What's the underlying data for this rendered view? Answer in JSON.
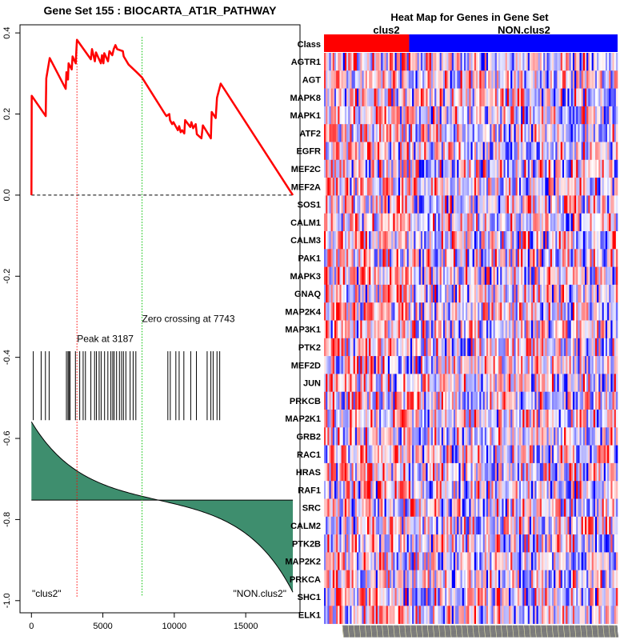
{
  "figure": {
    "left_title": "Gene Set  155 : BIOCARTA_AT1R_PATHWAY",
    "right_title": "Heat Map for Genes in Gene Set"
  },
  "chart_data": [
    {
      "type": "line",
      "name": "enrichment-score-plot",
      "title": "Gene Set  155 : BIOCARTA_AT1R_PATHWAY",
      "xlabel": "",
      "ylabel": "",
      "xlim": [
        -800,
        18800
      ],
      "ylim": [
        -1.03,
        0.42
      ],
      "x_ticks": [
        0,
        5000,
        10000,
        15000
      ],
      "x_tick_labels": [
        "0",
        "5000",
        "10000",
        "15000"
      ],
      "y_ticks": [
        0.4,
        0.2,
        0.0,
        -0.2,
        -0.4,
        -0.6,
        -0.8,
        -1.0
      ],
      "y_tick_labels": [
        "0.4",
        "0.2",
        "0.0",
        "-0.2",
        "-0.4",
        "-0.6",
        "-0.8",
        "-1.0"
      ],
      "colors": {
        "es_line": "#ff0000",
        "peak_line": "#ff0000",
        "zero_cross_line": "#00c000",
        "ranked_fill": "#3e8e6e",
        "hits": "#000000"
      },
      "es_curve": {
        "x": [
          0,
          20,
          1000,
          1040,
          1280,
          2400,
          2450,
          2560,
          2600,
          2820,
          2880,
          3100,
          3150,
          3187,
          4160,
          4240,
          4440,
          4520,
          4860,
          4940,
          5040,
          5100,
          5360,
          5460,
          5660,
          5760,
          5880,
          6000,
          6400,
          6460,
          6800,
          7400,
          7743,
          9350,
          9450,
          9650,
          9700,
          9850,
          9940,
          10250,
          10340,
          10450,
          10550,
          10700,
          10760,
          11120,
          11200,
          11320,
          11500,
          11580,
          11900,
          12000,
          12560,
          12620,
          12900,
          12990,
          13250,
          18300
        ],
        "y": [
          0.0,
          0.245,
          0.195,
          0.288,
          0.338,
          0.262,
          0.303,
          0.285,
          0.325,
          0.31,
          0.342,
          0.325,
          0.36,
          0.383,
          0.335,
          0.36,
          0.33,
          0.352,
          0.325,
          0.345,
          0.325,
          0.35,
          0.33,
          0.355,
          0.345,
          0.36,
          0.37,
          0.36,
          0.355,
          0.342,
          0.322,
          0.302,
          0.29,
          0.2,
          0.195,
          0.2,
          0.185,
          0.175,
          0.18,
          0.16,
          0.17,
          0.155,
          0.16,
          0.152,
          0.185,
          0.168,
          0.18,
          0.165,
          0.175,
          0.15,
          0.14,
          0.172,
          0.14,
          0.205,
          0.19,
          0.24,
          0.275,
          0.0
        ]
      },
      "zero_line_y": 0.0,
      "peak": {
        "x": 3187,
        "label": "Peak at 3187"
      },
      "zero_crossing": {
        "x": 7743,
        "label": "Zero crossing at 7743"
      },
      "hits_y_range": [
        -0.385,
        -0.555
      ],
      "hit_positions": [
        130,
        680,
        980,
        1240,
        2450,
        2560,
        2630,
        2710,
        3080,
        3380,
        3620,
        3780,
        4160,
        4420,
        4550,
        4740,
        4880,
        5120,
        5350,
        5560,
        5690,
        5790,
        5960,
        6160,
        6310,
        6440,
        6610,
        6910,
        7120,
        7310,
        9550,
        9720,
        10110,
        10340,
        10670,
        11150,
        11550,
        12300,
        12560,
        12720,
        12990,
        13180
      ],
      "ranked_metric": {
        "x_max": 18300,
        "baseline_y": -0.752,
        "start_y": -0.558,
        "end_y": -0.98
      },
      "class_labels": [
        "\"clus2\"",
        "\"NON.clus2\""
      ]
    },
    {
      "type": "heatmap",
      "name": "gene-set-heatmap",
      "title": "Heat Map for Genes in Gene Set",
      "class_row_label": "Class",
      "classes": [
        "clus2",
        "NON.clus2"
      ],
      "class_split_fraction": 0.29,
      "colors": {
        "clus2": "#ff0000",
        "NON.clus2": "#0000ff",
        "low": "#0000ff",
        "mid": "#ffffff",
        "high": "#ff0000"
      },
      "genes": [
        "AGTR1",
        "AGT",
        "MAPK8",
        "MAPK1",
        "ATF2",
        "EGFR",
        "MEF2C",
        "MEF2A",
        "SOS1",
        "CALM1",
        "CALM3",
        "PAK1",
        "MAPK3",
        "GNAQ",
        "MAP2K4",
        "MAP3K1",
        "PTK2",
        "MEF2D",
        "JUN",
        "PRKCB",
        "MAP2K1",
        "GRB2",
        "RAC1",
        "HRAS",
        "RAF1",
        "SRC",
        "CALM2",
        "PTK2B",
        "MAP2K2",
        "PRKCA",
        "SHC1",
        "ELK1"
      ],
      "n_samples": 170
    }
  ]
}
